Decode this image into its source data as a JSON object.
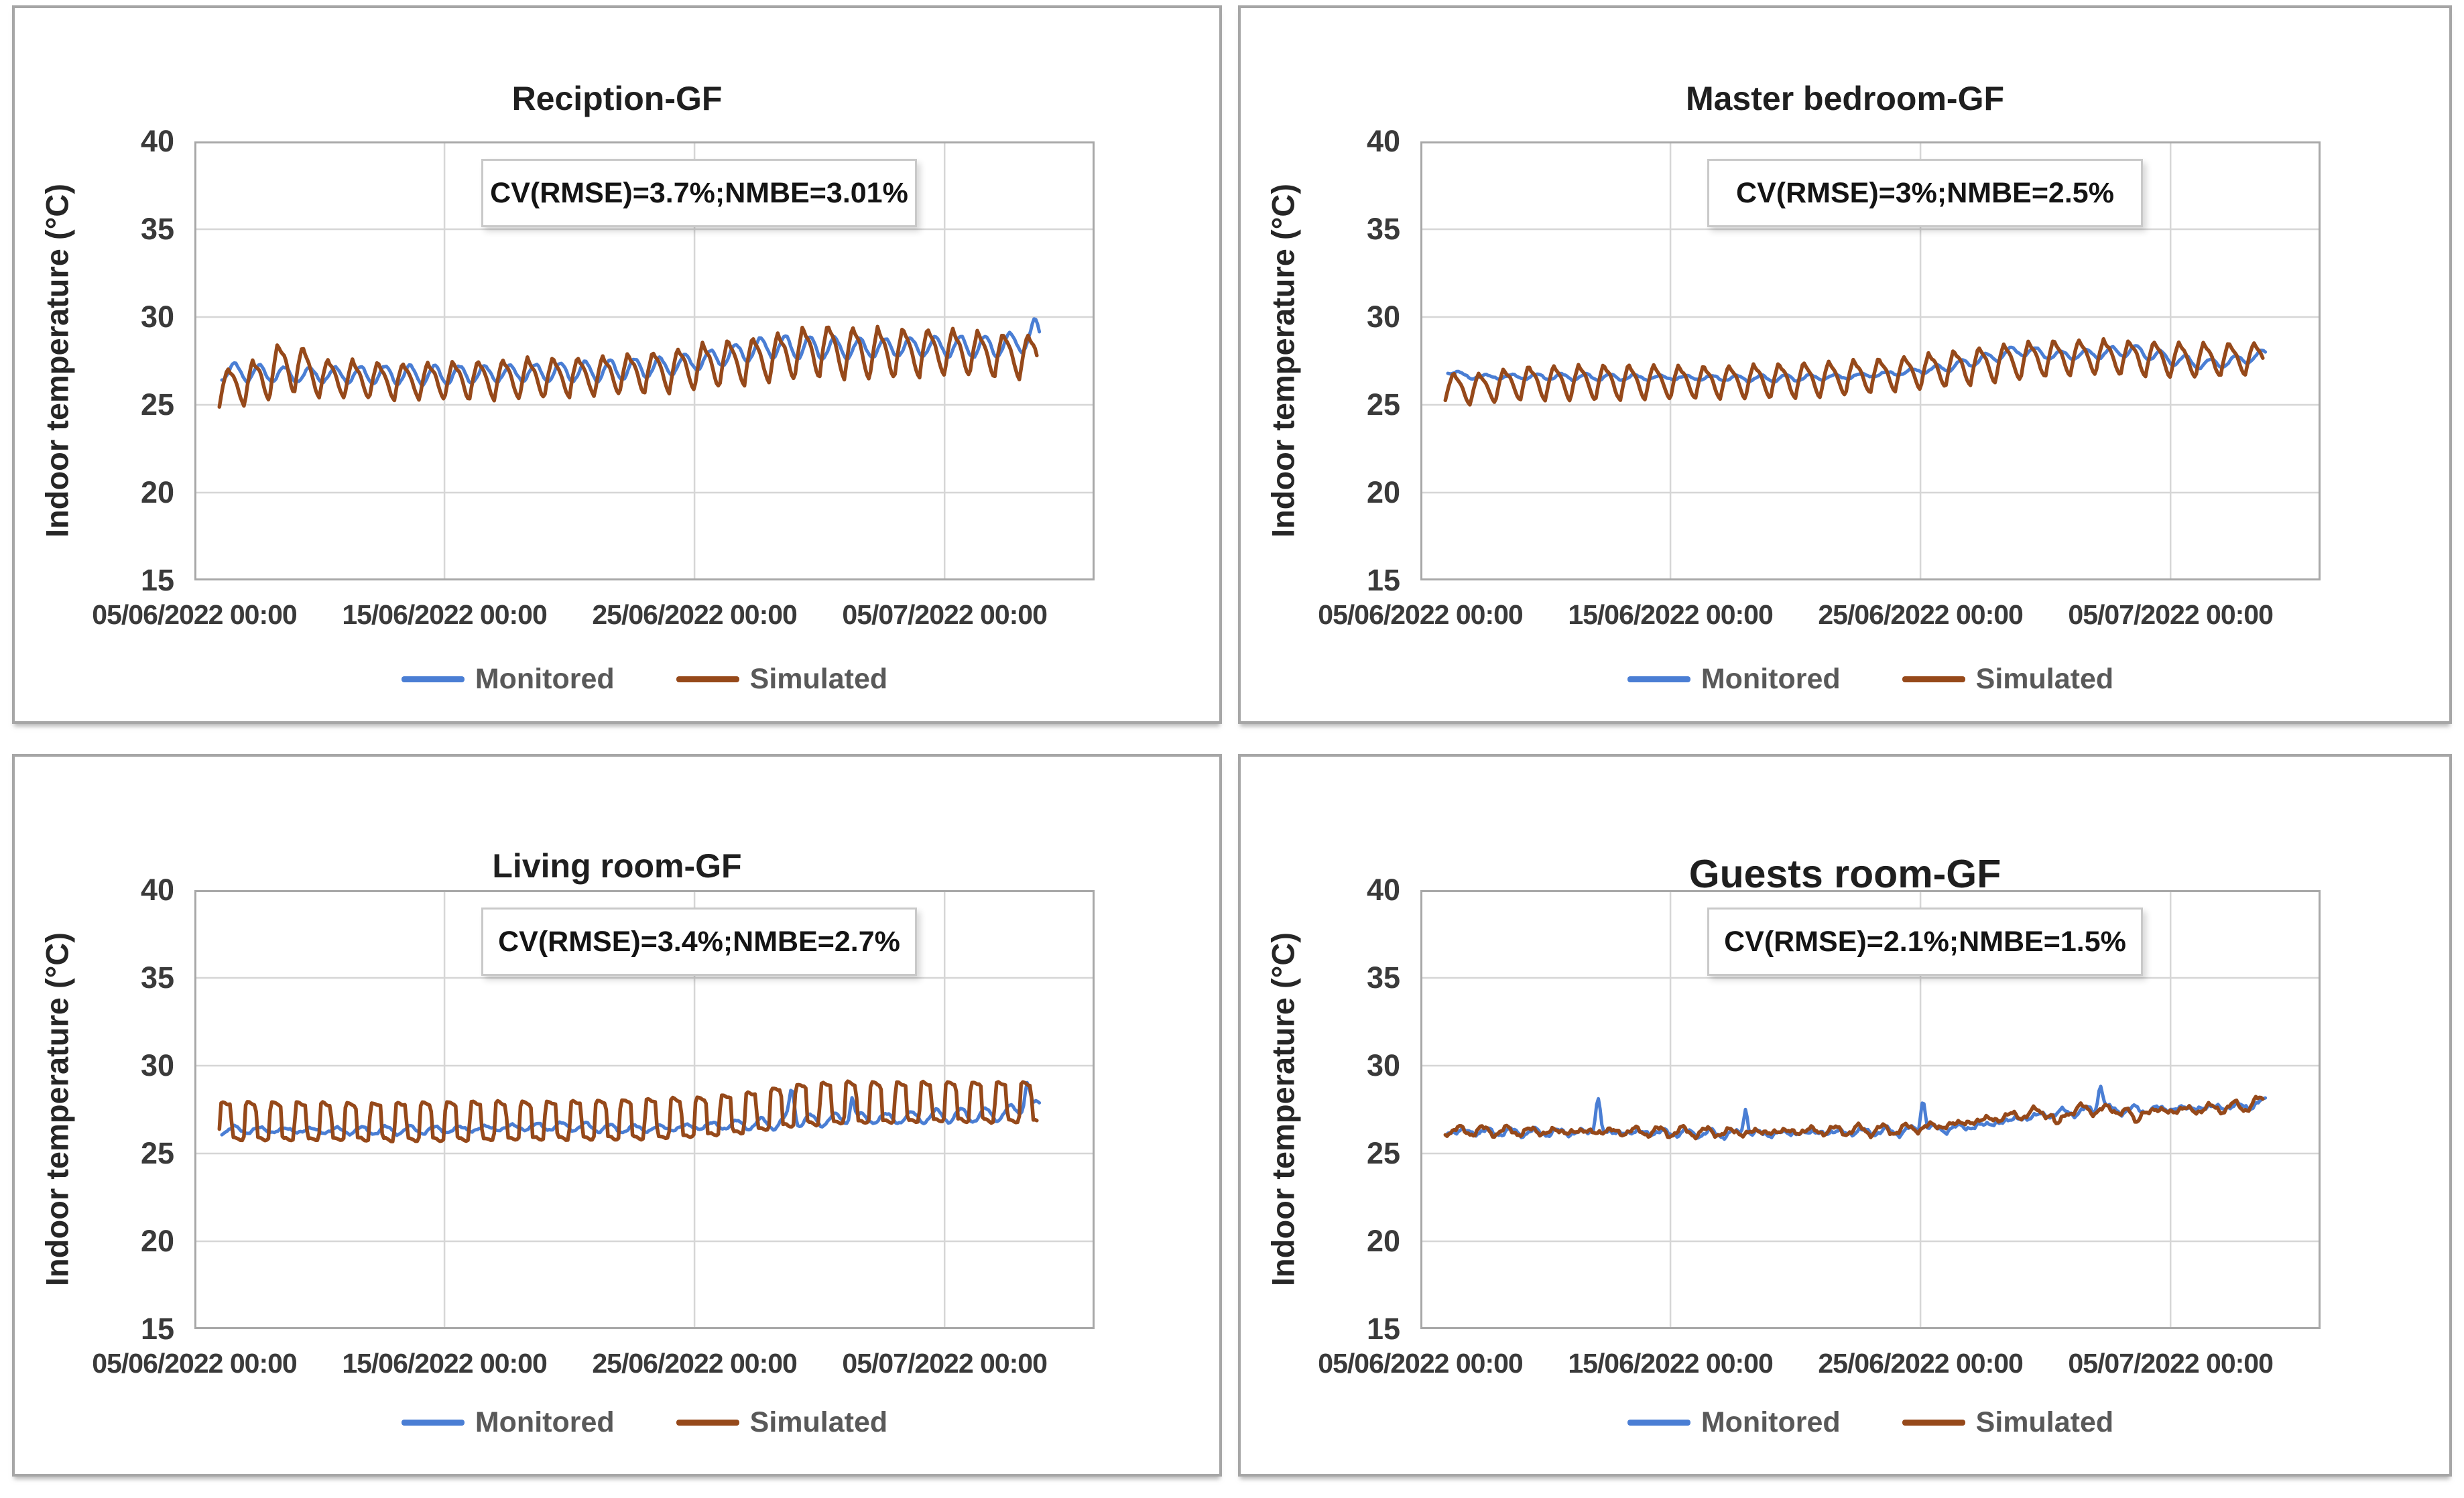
{
  "colors": {
    "monitored": "#4a7ed4",
    "simulated": "#96491a",
    "gridline": "#d6d6d6",
    "plot_border": "#a8a8a8",
    "tick_text": "#3a3a3a",
    "legend_text": "#595959",
    "title_text": "#1f1f1f"
  },
  "axes": {
    "y": {
      "title": "Indoor temperature (°C)",
      "min": 15,
      "max": 40,
      "ticks": [
        40,
        35,
        30,
        25,
        20,
        15
      ],
      "gridline_values": [
        35,
        30,
        25,
        20
      ]
    },
    "x": {
      "unit": "days since 05/06/2022 00:00",
      "min": 0,
      "max": 36,
      "tick_days": [
        0,
        10,
        20,
        30
      ],
      "tick_labels": [
        "05/06/2022 00:00",
        "15/06/2022 00:00",
        "25/06/2022 00:00",
        "05/07/2022 00:00"
      ],
      "gridline_days": [
        10,
        20,
        30
      ]
    }
  },
  "chart_data": [
    {
      "type": "line",
      "title": "Reciption-GF",
      "annotation": "CV(RMSE)=3.7%;NMBE=3.01%",
      "cv_rmse_pct": 3.7,
      "nmbe_pct": 3.01,
      "series": [
        {
          "name": "Monitored",
          "color": "monitored",
          "shape": "sin",
          "phase": 0.12,
          "t0": 1.1,
          "t1": 33.8,
          "mid": [
            [
              1.1,
              26.9
            ],
            [
              4,
              26.7
            ],
            [
              10,
              26.7
            ],
            [
              16,
              26.9
            ],
            [
              19,
              27.2
            ],
            [
              21,
              27.7
            ],
            [
              23,
              28.3
            ],
            [
              26,
              28.2
            ],
            [
              29,
              28.3
            ],
            [
              32,
              28.3
            ],
            [
              33.8,
              28.8
            ]
          ],
          "amp": [
            [
              1.1,
              0.45
            ],
            [
              10,
              0.5
            ],
            [
              20,
              0.55
            ],
            [
              24,
              0.6
            ],
            [
              33.8,
              0.55
            ]
          ],
          "namp": 0.12,
          "seed": 3.1,
          "spikes": [
            {
              "day": 33.6,
              "height": 0.6,
              "width": 0.12
            }
          ]
        },
        {
          "name": "Simulated",
          "color": "simulated",
          "shape": "tri",
          "phase": 0.0,
          "t0": 1.0,
          "t1": 33.7,
          "mid": [
            [
              1,
              26.0
            ],
            [
              2.5,
              26.4
            ],
            [
              3.8,
              27.4
            ],
            [
              5,
              26.6
            ],
            [
              8,
              26.4
            ],
            [
              12,
              26.5
            ],
            [
              16,
              26.7
            ],
            [
              19,
              27.0
            ],
            [
              21,
              27.4
            ],
            [
              23,
              27.7
            ],
            [
              25,
              28.2
            ],
            [
              27,
              28.0
            ],
            [
              30,
              28.1
            ],
            [
              33.7,
              27.8
            ]
          ],
          "amp": [
            [
              1,
              1.15
            ],
            [
              3.8,
              1.7
            ],
            [
              5,
              1.15
            ],
            [
              12,
              1.2
            ],
            [
              19,
              1.3
            ],
            [
              23,
              1.5
            ],
            [
              25,
              1.7
            ],
            [
              28,
              1.5
            ],
            [
              33.7,
              1.4
            ]
          ],
          "namp": 0.08,
          "seed": 7.7,
          "spikes": []
        }
      ]
    },
    {
      "type": "line",
      "title": "Master bedroom-GF",
      "annotation": "CV(RMSE)=3%;NMBE=2.5%",
      "cv_rmse_pct": 3.0,
      "nmbe_pct": 2.5,
      "series": [
        {
          "name": "Monitored",
          "color": "monitored",
          "shape": "sin",
          "phase": 0.12,
          "t0": 1.1,
          "t1": 33.8,
          "mid": [
            [
              1.1,
              26.9
            ],
            [
              2,
              26.6
            ],
            [
              5,
              26.6
            ],
            [
              10,
              26.55
            ],
            [
              14,
              26.5
            ],
            [
              17,
              26.6
            ],
            [
              19,
              26.8
            ],
            [
              21,
              27.1
            ],
            [
              22.5,
              27.6
            ],
            [
              24,
              28.1
            ],
            [
              25.5,
              27.8
            ],
            [
              27,
              27.9
            ],
            [
              28.5,
              28.1
            ],
            [
              30,
              27.6
            ],
            [
              31.5,
              27.3
            ],
            [
              33,
              27.6
            ],
            [
              33.8,
              27.9
            ]
          ],
          "amp": [
            [
              1.1,
              0.15
            ],
            [
              20,
              0.15
            ],
            [
              24,
              0.3
            ],
            [
              33.8,
              0.3
            ]
          ],
          "namp": 0.08,
          "seed": 11.2,
          "spikes": []
        },
        {
          "name": "Simulated",
          "color": "simulated",
          "shape": "tri",
          "phase": 0.0,
          "t0": 1.0,
          "t1": 33.7,
          "mid": [
            [
              1,
              26.1
            ],
            [
              2,
              25.9
            ],
            [
              4,
              26.3
            ],
            [
              8,
              26.35
            ],
            [
              12,
              26.35
            ],
            [
              16,
              26.5
            ],
            [
              19,
              26.8
            ],
            [
              21,
              27.1
            ],
            [
              23,
              27.4
            ],
            [
              25,
              27.7
            ],
            [
              27,
              27.8
            ],
            [
              29,
              27.7
            ],
            [
              31,
              27.6
            ],
            [
              33.7,
              27.7
            ]
          ],
          "amp": [
            [
              1,
              0.85
            ],
            [
              4,
              1.1
            ],
            [
              12,
              1.05
            ],
            [
              20,
              1.1
            ],
            [
              25,
              1.15
            ],
            [
              33.7,
              1.0
            ]
          ],
          "namp": 0.06,
          "seed": 5.4,
          "spikes": []
        }
      ]
    },
    {
      "type": "line",
      "title": "Living room-GF",
      "annotation": "CV(RMSE)=3.4%;NMBE=2.7%",
      "cv_rmse_pct": 3.4,
      "nmbe_pct": 2.7,
      "series": [
        {
          "name": "Monitored",
          "color": "monitored",
          "shape": "sin",
          "phase": 0.15,
          "t0": 1.1,
          "t1": 33.8,
          "mid": [
            [
              1.1,
              26.35
            ],
            [
              6,
              26.3
            ],
            [
              10,
              26.35
            ],
            [
              13,
              26.5
            ],
            [
              15,
              26.55
            ],
            [
              17,
              26.4
            ],
            [
              19,
              26.45
            ],
            [
              21,
              26.6
            ],
            [
              23,
              26.7
            ],
            [
              25,
              26.9
            ],
            [
              26.5,
              27.0
            ],
            [
              28,
              27.0
            ],
            [
              30,
              27.15
            ],
            [
              32,
              27.2
            ],
            [
              33.8,
              27.7
            ]
          ],
          "amp": [
            [
              1.1,
              0.18
            ],
            [
              20,
              0.2
            ],
            [
              25,
              0.35
            ],
            [
              33.8,
              0.35
            ]
          ],
          "namp": 0.12,
          "seed": 9.8,
          "spikes": [
            {
              "day": 23.9,
              "height": 1.9,
              "width": 0.1
            },
            {
              "day": 26.3,
              "height": 1.3,
              "width": 0.08
            },
            {
              "day": 33.3,
              "height": 1.6,
              "width": 0.1
            }
          ]
        },
        {
          "name": "Simulated",
          "color": "simulated",
          "shape": "square",
          "phase": 0.0,
          "t0": 1.0,
          "t1": 33.7,
          "mid": [
            [
              1,
              26.85
            ],
            [
              8,
              26.8
            ],
            [
              12,
              26.85
            ],
            [
              16,
              26.9
            ],
            [
              18,
              26.95
            ],
            [
              20,
              27.05
            ],
            [
              22,
              27.3
            ],
            [
              24,
              27.75
            ],
            [
              26,
              27.9
            ],
            [
              28,
              27.9
            ],
            [
              30,
              27.95
            ],
            [
              33.7,
              27.9
            ]
          ],
          "amp": [
            [
              1,
              1.0
            ],
            [
              20,
              1.05
            ],
            [
              24,
              1.1
            ],
            [
              33.7,
              1.05
            ]
          ],
          "namp": 0.05,
          "seed": 4.2,
          "spikes": []
        }
      ]
    },
    {
      "type": "line",
      "title": "Guests room-GF",
      "annotation": "CV(RMSE)=2.1%;NMBE=1.5%",
      "cv_rmse_pct": 2.1,
      "nmbe_pct": 1.5,
      "series": [
        {
          "name": "Monitored",
          "color": "monitored",
          "shape": "sin",
          "phase": 0.1,
          "t0": 1.1,
          "t1": 33.8,
          "mid": [
            [
              1.1,
              26.25
            ],
            [
              5,
              26.2
            ],
            [
              9,
              26.2
            ],
            [
              13,
              26.1
            ],
            [
              16,
              26.2
            ],
            [
              19,
              26.25
            ],
            [
              21,
              26.4
            ],
            [
              22.5,
              26.6
            ],
            [
              24,
              27.0
            ],
            [
              25.5,
              27.3
            ],
            [
              27,
              27.45
            ],
            [
              29,
              27.5
            ],
            [
              31,
              27.6
            ],
            [
              33,
              27.7
            ],
            [
              33.8,
              27.9
            ]
          ],
          "amp": [
            [
              1.1,
              0.12
            ],
            [
              33.8,
              0.16
            ]
          ],
          "namp": 0.22,
          "seed": 13.3,
          "spikes": [
            {
              "day": 7.1,
              "height": 2.0,
              "width": 0.09
            },
            {
              "day": 13.0,
              "height": 1.6,
              "width": 0.08
            },
            {
              "day": 20.1,
              "height": 1.85,
              "width": 0.09
            },
            {
              "day": 27.2,
              "height": 1.55,
              "width": 0.1
            }
          ]
        },
        {
          "name": "Simulated",
          "color": "simulated",
          "shape": "sin",
          "phase": 0.0,
          "t0": 1.0,
          "t1": 33.7,
          "mid": [
            [
              1,
              26.3
            ],
            [
              5,
              26.25
            ],
            [
              9,
              26.25
            ],
            [
              13,
              26.2
            ],
            [
              16,
              26.3
            ],
            [
              19,
              26.35
            ],
            [
              21,
              26.6
            ],
            [
              22.5,
              26.9
            ],
            [
              24,
              27.2
            ],
            [
              25.5,
              27.5
            ],
            [
              27,
              27.5
            ],
            [
              29,
              27.4
            ],
            [
              31,
              27.5
            ],
            [
              33,
              27.7
            ],
            [
              33.7,
              28.0
            ]
          ],
          "amp": [
            [
              1,
              0.15
            ],
            [
              33.7,
              0.2
            ]
          ],
          "namp": 0.25,
          "seed": 2.6,
          "spikes": [
            {
              "day": 25.5,
              "height": -1.1,
              "width": 0.15
            },
            {
              "day": 28.6,
              "height": -0.7,
              "width": 0.12
            }
          ]
        }
      ]
    }
  ]
}
